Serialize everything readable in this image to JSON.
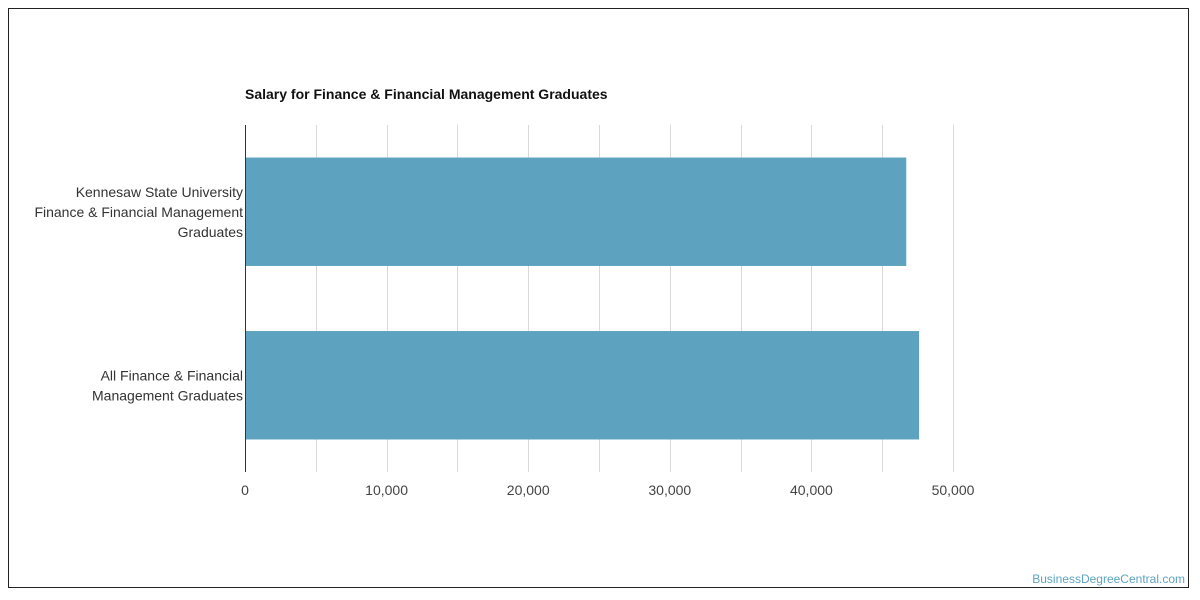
{
  "chart_data": {
    "type": "bar",
    "orientation": "horizontal",
    "title": "Salary for Finance & Financial Management Graduates",
    "categories": [
      [
        "Kennesaw State University",
        "Finance & Financial Management",
        "Graduates"
      ],
      [
        "All Finance & Financial",
        "Management Graduates"
      ]
    ],
    "values": [
      46700,
      47600
    ],
    "xlim": [
      0,
      50000
    ],
    "xticks": [
      0,
      10000,
      20000,
      30000,
      40000,
      50000
    ],
    "xtick_labels": [
      "0",
      "10,000",
      "20,000",
      "30,000",
      "40,000",
      "50,000"
    ],
    "xlabel": "",
    "ylabel": "",
    "grid": true,
    "bar_color": "#5da3bf"
  },
  "watermark": "BusinessDegreeCentral.com"
}
